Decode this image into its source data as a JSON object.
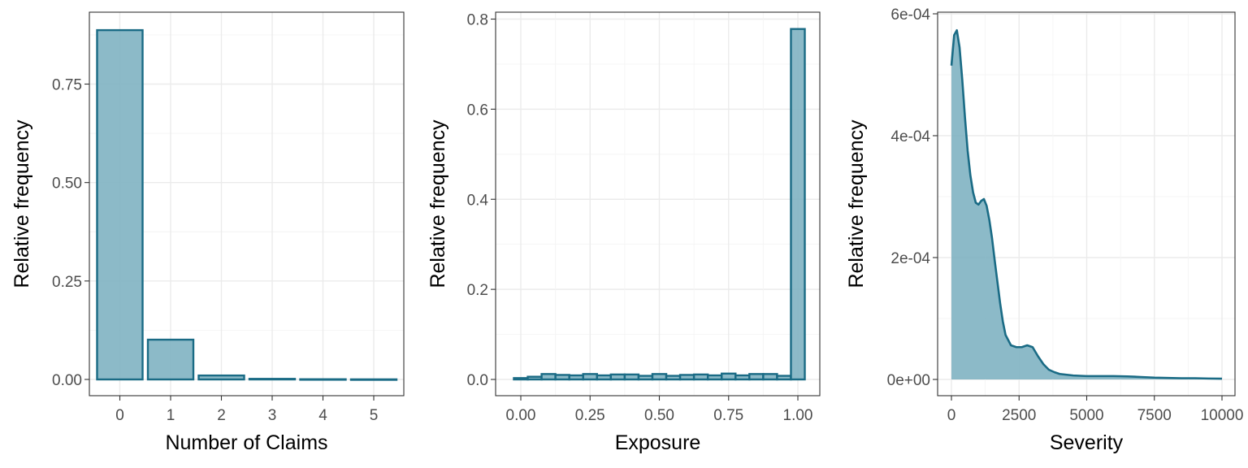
{
  "colors": {
    "fill": "#7fb2c2",
    "stroke": "#1a6b85",
    "fill_opacity": 0.9
  },
  "chart_data": [
    {
      "type": "bar",
      "xlabel": "Number of Claims",
      "ylabel": "Relative frequency",
      "categories": [
        "0",
        "1",
        "2",
        "3",
        "4",
        "5"
      ],
      "values": [
        0.887,
        0.101,
        0.01,
        0.0015,
        0.0005,
        0.0002
      ],
      "ylim": [
        0,
        0.92
      ],
      "y_ticks": [
        0,
        0.25,
        0.5,
        0.75
      ],
      "y_tick_labels": [
        "0.00",
        "0.25",
        "0.50",
        "0.75"
      ],
      "grid": true
    },
    {
      "type": "bar",
      "subtype": "histogram",
      "xlabel": "Exposure",
      "ylabel": "Relative frequency",
      "bin_width": 0.05,
      "bin_centers": [
        0.0,
        0.05,
        0.1,
        0.15,
        0.2,
        0.25,
        0.3,
        0.35,
        0.4,
        0.45,
        0.5,
        0.55,
        0.6,
        0.65,
        0.7,
        0.75,
        0.8,
        0.85,
        0.9,
        0.95,
        1.0
      ],
      "values": [
        0.003,
        0.006,
        0.012,
        0.01,
        0.009,
        0.012,
        0.009,
        0.011,
        0.011,
        0.008,
        0.012,
        0.008,
        0.01,
        0.011,
        0.009,
        0.013,
        0.009,
        0.012,
        0.012,
        0.008,
        0.778
      ],
      "xlim": [
        -0.05,
        1.05
      ],
      "ylim": [
        0,
        0.82
      ],
      "x_ticks": [
        0,
        0.25,
        0.5,
        0.75,
        1.0
      ],
      "x_tick_labels": [
        "0.00",
        "0.25",
        "0.50",
        "0.75",
        "1.00"
      ],
      "y_ticks": [
        0,
        0.2,
        0.4,
        0.6,
        0.8
      ],
      "y_tick_labels": [
        "0.0",
        "0.2",
        "0.4",
        "0.6",
        "0.8"
      ],
      "grid": true
    },
    {
      "type": "area",
      "subtype": "density",
      "xlabel": "Severity",
      "ylabel": "Relative frequency",
      "x": [
        0,
        100,
        200,
        300,
        400,
        500,
        600,
        700,
        800,
        900,
        1000,
        1100,
        1200,
        1300,
        1400,
        1500,
        1600,
        1700,
        1800,
        1900,
        2000,
        2200,
        2400,
        2600,
        2800,
        3000,
        3200,
        3400,
        3600,
        3800,
        4000,
        4500,
        5000,
        5500,
        6000,
        6500,
        7000,
        7500,
        8000,
        8500,
        9000,
        9500,
        10000
      ],
      "y": [
        0.000515,
        0.000565,
        0.000573,
        0.000545,
        0.000492,
        0.00043,
        0.000375,
        0.000335,
        0.000307,
        0.00029,
        0.000287,
        0.000293,
        0.000296,
        0.000285,
        0.000262,
        0.000232,
        0.000195,
        0.00016,
        0.000125,
        9.5e-05,
        7.3e-05,
        5.6e-05,
        5.3e-05,
        5.3e-05,
        5.6e-05,
        5.3e-05,
        3.8e-05,
        2.5e-05,
        1.6e-05,
        1.2e-05,
        9e-06,
        6.5e-06,
        5.5e-06,
        5.5e-06,
        5.5e-06,
        5e-06,
        4e-06,
        3e-06,
        2.5e-06,
        2e-06,
        2e-06,
        1.5e-06,
        1.2e-06
      ],
      "xlim": [
        -500,
        10500
      ],
      "ylim": [
        0,
        0.0006
      ],
      "x_ticks": [
        0,
        2500,
        5000,
        7500,
        10000
      ],
      "x_tick_labels": [
        "0",
        "2500",
        "5000",
        "7500",
        "10000"
      ],
      "y_ticks": [
        0,
        0.0002,
        0.0004,
        0.0006
      ],
      "y_tick_labels": [
        "0e+00",
        "2e-04",
        "4e-04",
        "6e-04"
      ],
      "grid": true
    }
  ]
}
